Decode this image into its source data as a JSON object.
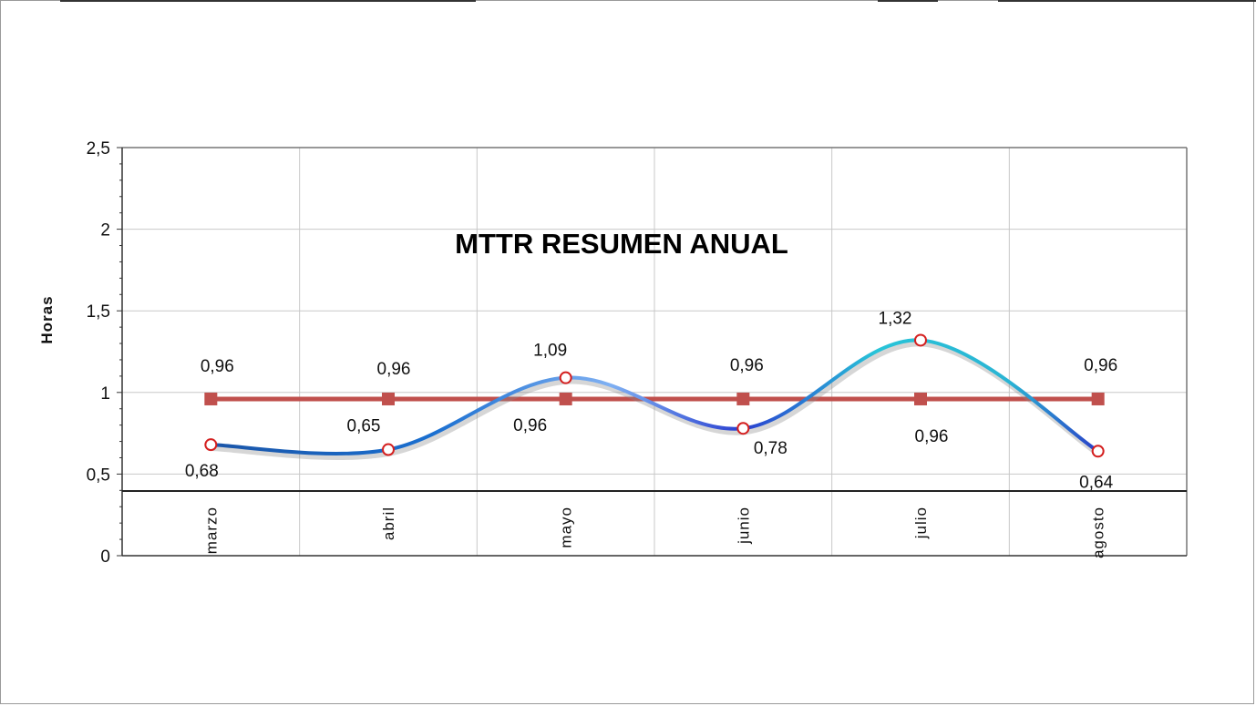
{
  "chart_data": {
    "type": "line",
    "title": "MTTR RESUMEN ANUAL",
    "xlabel": "",
    "ylabel": "Horas",
    "ylim": [
      0,
      2.5
    ],
    "y_ticks": [
      "0",
      "0,5",
      "1",
      "1,5",
      "2",
      "2,5"
    ],
    "y_tick_values": [
      0,
      0.5,
      1,
      1.5,
      2,
      2.5
    ],
    "categories": [
      "marzo",
      "abril",
      "mayo",
      "junio",
      "julio",
      "agosto"
    ],
    "grid": true,
    "legend": "none",
    "series": [
      {
        "values": [
          0.68,
          0.65,
          1.09,
          0.78,
          1.32,
          0.64
        ],
        "labels": [
          "0,68",
          "0,65",
          "1,09",
          "0,78",
          "1,32",
          "0,64"
        ],
        "style": "smooth-line",
        "color": "#1f5fbf",
        "marker_edge": "#d42020",
        "marker_fill": "#ffffff"
      },
      {
        "values": [
          0.96,
          0.96,
          0.96,
          0.96,
          0.96,
          0.96
        ],
        "labels": [
          "0,96",
          "0,96",
          "0,96",
          "0,96",
          "0,96",
          "0,96"
        ],
        "style": "line-square",
        "color": "#c0504d"
      }
    ]
  }
}
